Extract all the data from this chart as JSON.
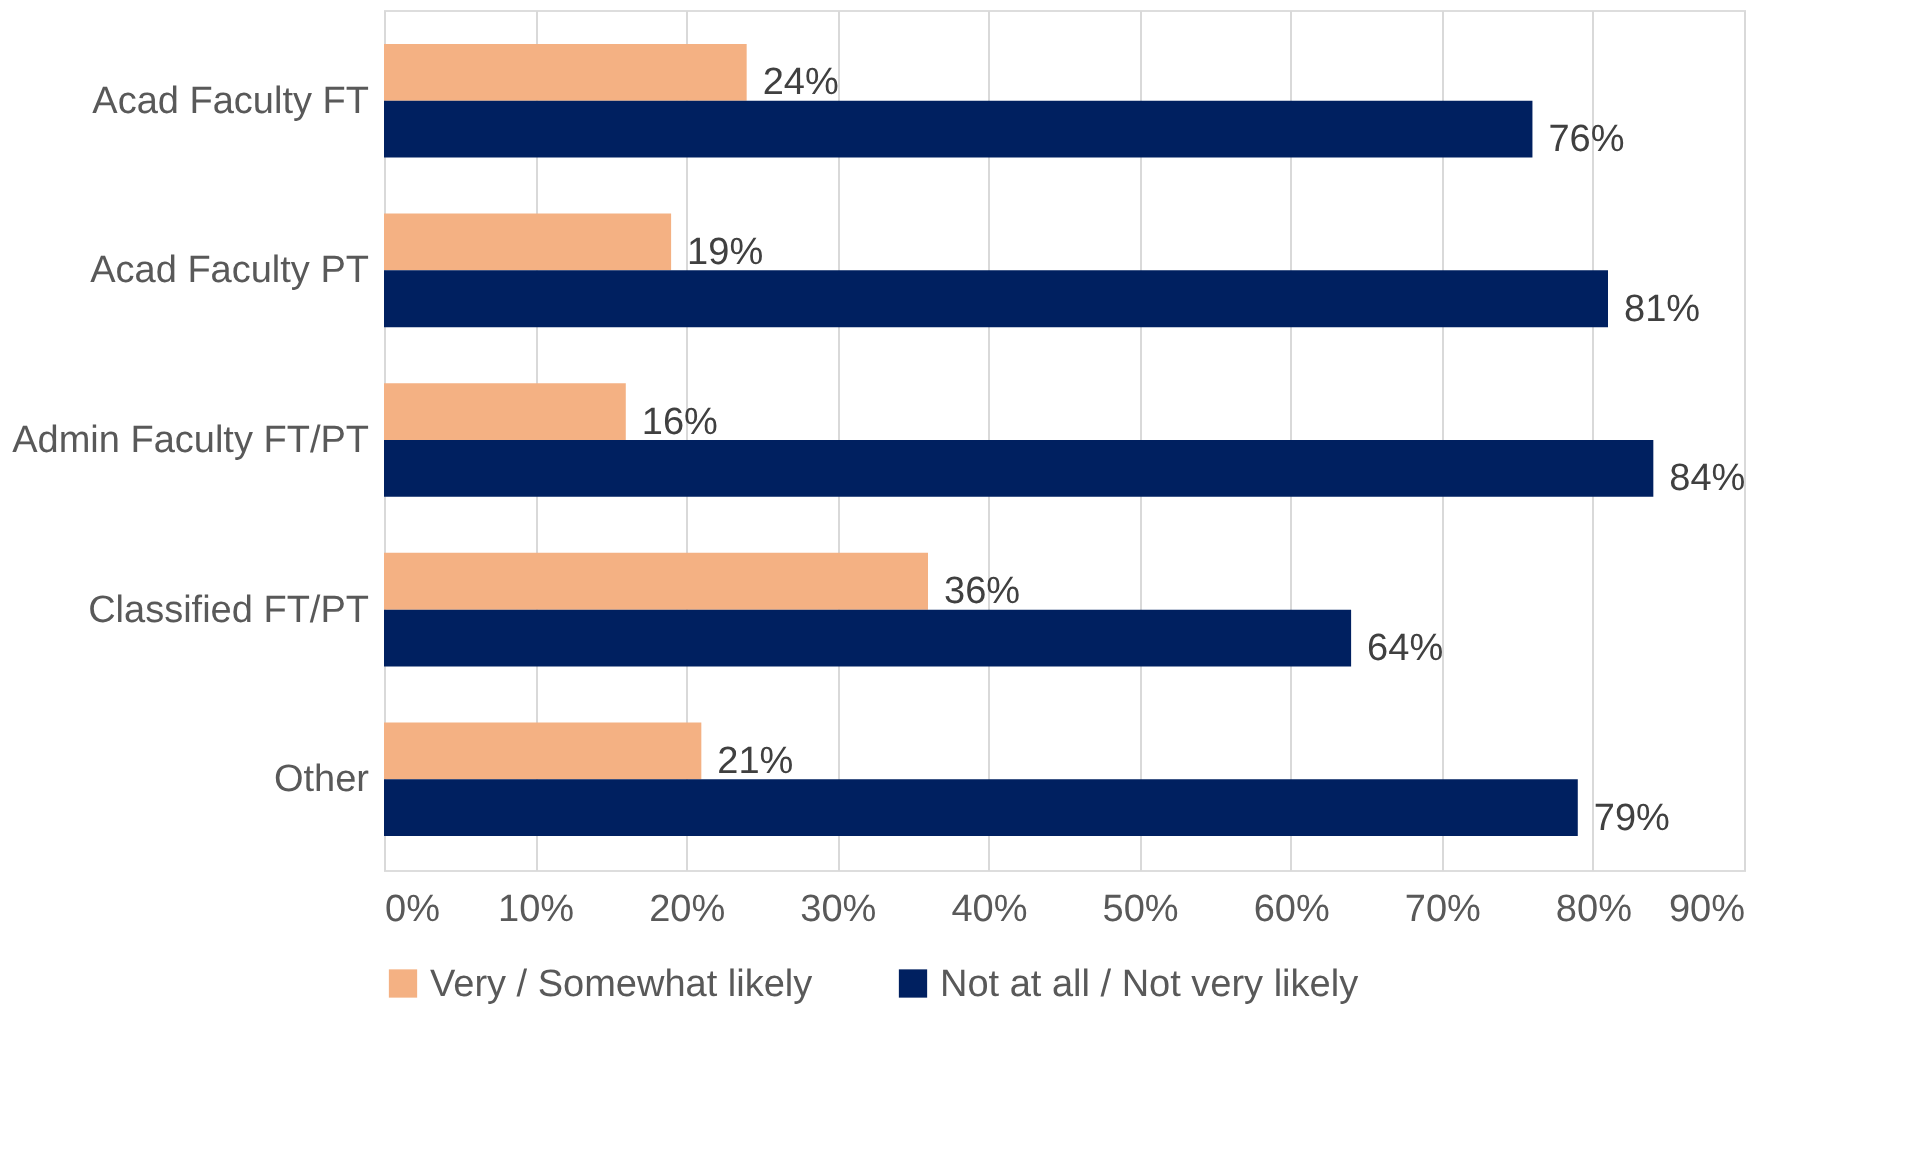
{
  "chart_data": {
    "type": "bar",
    "orientation": "horizontal",
    "categories": [
      "Acad Faculty FT",
      "Acad Faculty PT",
      "Admin Faculty FT/PT",
      "Classified FT/PT",
      "Other"
    ],
    "series": [
      {
        "name": "Very / Somewhat likely",
        "color": "#f4b183",
        "values": [
          24,
          19,
          16,
          36,
          21
        ],
        "value_labels": [
          "24%",
          "19%",
          "16%",
          "36%",
          "21%"
        ]
      },
      {
        "name": "Not at all / Not very likely",
        "color": "#002060",
        "values": [
          76,
          81,
          84,
          64,
          79
        ],
        "value_labels": [
          "76%",
          "81%",
          "84%",
          "64%",
          "79%"
        ]
      }
    ],
    "xlim": [
      0,
      90
    ],
    "xticks": [
      {
        "value": 0,
        "label": "0%"
      },
      {
        "value": 10,
        "label": "10%"
      },
      {
        "value": 20,
        "label": "20%"
      },
      {
        "value": 30,
        "label": "30%"
      },
      {
        "value": 40,
        "label": "40%"
      },
      {
        "value": 50,
        "label": "50%"
      },
      {
        "value": 60,
        "label": "60%"
      },
      {
        "value": 70,
        "label": "70%"
      },
      {
        "value": 80,
        "label": "80%"
      },
      {
        "value": 90,
        "label": "90%"
      }
    ],
    "grid": "x",
    "legend": "bottom"
  }
}
